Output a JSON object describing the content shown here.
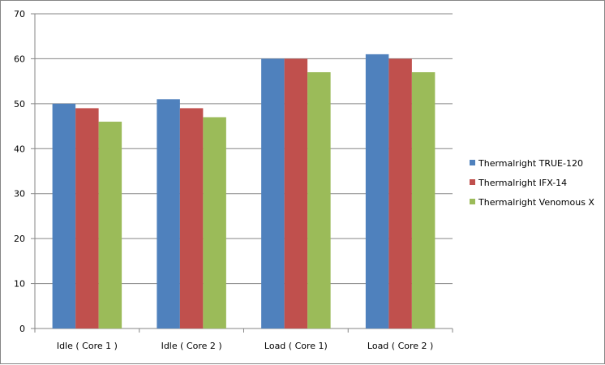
{
  "chart_data": {
    "type": "bar",
    "categories": [
      "Idle ( Core 1 )",
      "Idle ( Core 2 )",
      "Load ( Core 1)",
      "Load ( Core 2 )"
    ],
    "series": [
      {
        "name": "Thermalright TRUE-120",
        "color": "#4f81bd",
        "values": [
          50,
          51,
          60,
          61
        ]
      },
      {
        "name": "Thermalright IFX-14",
        "color": "#c0504d",
        "values": [
          49,
          49,
          60,
          60
        ]
      },
      {
        "name": "Thermalright Venomous  X",
        "color": "#9bbb59",
        "values": [
          46,
          47,
          57,
          57
        ]
      }
    ],
    "ylim": [
      0,
      70
    ],
    "yticks": [
      "0",
      "10",
      "20",
      "30",
      "40",
      "50",
      "60",
      "70"
    ],
    "grid": true,
    "legend_position": "right",
    "title": "",
    "xlabel": "",
    "ylabel": ""
  }
}
